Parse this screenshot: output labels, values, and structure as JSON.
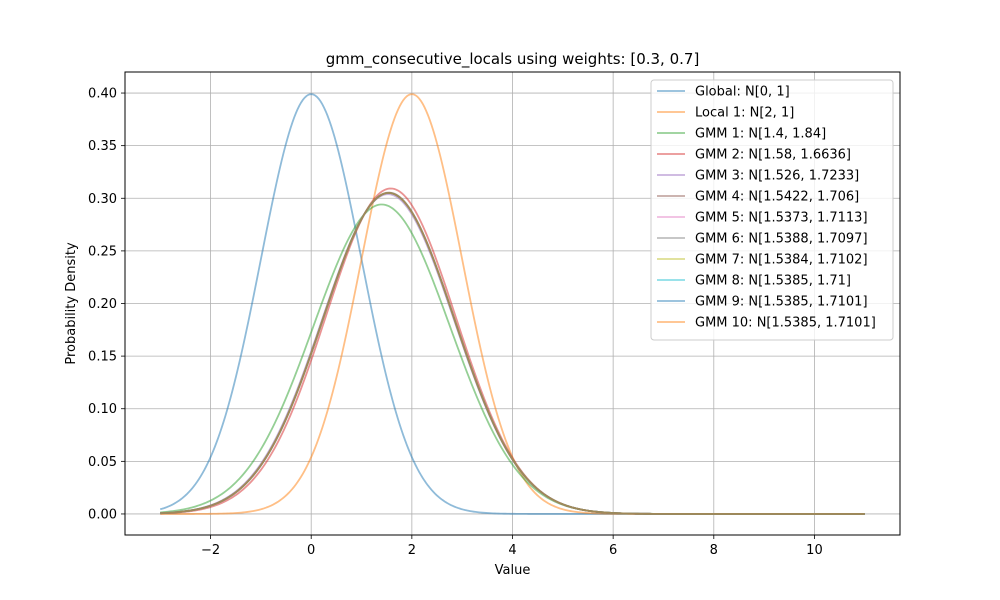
{
  "chart_data": {
    "type": "line",
    "title": "gmm_consecutive_locals using weights: [0.3, 0.7]",
    "xlabel": "Value",
    "ylabel": "Probability Density",
    "xlim": [
      -3.7,
      11.7
    ],
    "ylim": [
      -0.02,
      0.42
    ],
    "x_domain": [
      -3,
      11
    ],
    "xticks": [
      -2,
      0,
      2,
      4,
      6,
      8,
      10
    ],
    "xtick_labels": [
      "−2",
      "0",
      "2",
      "4",
      "6",
      "8",
      "10"
    ],
    "yticks": [
      0.0,
      0.05,
      0.1,
      0.15,
      0.2,
      0.25,
      0.3,
      0.35,
      0.4
    ],
    "ytick_labels": [
      "0.00",
      "0.05",
      "0.10",
      "0.15",
      "0.20",
      "0.25",
      "0.30",
      "0.35",
      "0.40"
    ],
    "grid": true,
    "legend_position": "top-right",
    "series": [
      {
        "name": "Global: N[0, 1]",
        "mean": 0,
        "variance": 1,
        "color": "#1f77b4"
      },
      {
        "name": "Local 1: N[2, 1]",
        "mean": 2,
        "variance": 1,
        "color": "#ff7f0e"
      },
      {
        "name": "GMM 1: N[1.4, 1.84]",
        "mean": 1.4,
        "variance": 1.84,
        "color": "#2ca02c"
      },
      {
        "name": "GMM 2: N[1.58, 1.6636]",
        "mean": 1.58,
        "variance": 1.6636,
        "color": "#d62728"
      },
      {
        "name": "GMM 3: N[1.526, 1.7233]",
        "mean": 1.526,
        "variance": 1.7233,
        "color": "#9467bd"
      },
      {
        "name": "GMM 4: N[1.5422, 1.706]",
        "mean": 1.5422,
        "variance": 1.706,
        "color": "#8c564b"
      },
      {
        "name": "GMM 5: N[1.5373, 1.7113]",
        "mean": 1.5373,
        "variance": 1.7113,
        "color": "#e377c2"
      },
      {
        "name": "GMM 6: N[1.5388, 1.7097]",
        "mean": 1.5388,
        "variance": 1.7097,
        "color": "#7f7f7f"
      },
      {
        "name": "GMM 7: N[1.5384, 1.7102]",
        "mean": 1.5384,
        "variance": 1.7102,
        "color": "#bcbd22"
      },
      {
        "name": "GMM 8: N[1.5385, 1.71]",
        "mean": 1.5385,
        "variance": 1.71,
        "color": "#17becf"
      },
      {
        "name": "GMM 9: N[1.5385, 1.7101]",
        "mean": 1.5385,
        "variance": 1.7101,
        "color": "#1f77b4"
      },
      {
        "name": "GMM 10: N[1.5385, 1.7101]",
        "mean": 1.5385,
        "variance": 1.7101,
        "color": "#ff7f0e"
      }
    ]
  }
}
